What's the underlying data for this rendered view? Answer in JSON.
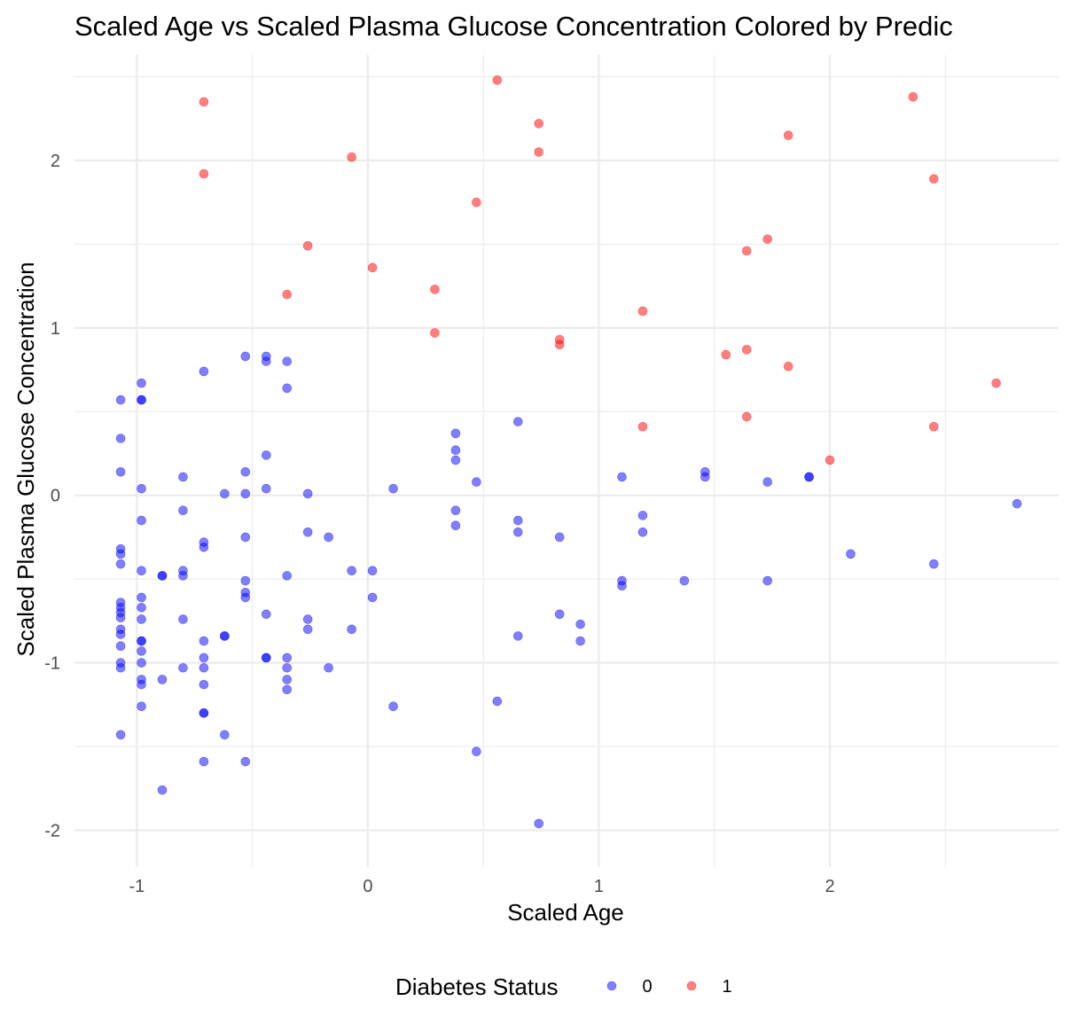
{
  "chart_data": {
    "type": "scatter",
    "title": "Scaled Age vs Scaled Plasma Glucose Concentration Colored by Predic",
    "xlabel": "Scaled Age",
    "ylabel": "Scaled Plasma Glucose Concentration",
    "xlim": [
      -1.27,
      2.99
    ],
    "ylim": [
      -2.22,
      2.63
    ],
    "x_ticks": [
      -1,
      0,
      1,
      2
    ],
    "y_ticks": [
      -2,
      -1,
      0,
      1,
      2
    ],
    "x_tick_labels": [
      "-1",
      "0",
      "1",
      "2"
    ],
    "y_tick_labels": [
      "-2",
      "-1",
      "0",
      "1",
      "2"
    ],
    "grid": true,
    "legend_position": "bottom",
    "legend_title": "Diabetes Status",
    "series": [
      {
        "name": "0",
        "color": "#0000ff",
        "points": [
          [
            -1.07,
            0.57
          ],
          [
            -1.07,
            0.34
          ],
          [
            -1.07,
            0.14
          ],
          [
            -1.07,
            -0.32
          ],
          [
            -1.07,
            -0.35
          ],
          [
            -1.07,
            -0.41
          ],
          [
            -1.07,
            -0.64
          ],
          [
            -1.07,
            -0.67
          ],
          [
            -1.07,
            -0.7
          ],
          [
            -1.07,
            -0.73
          ],
          [
            -1.07,
            -0.8
          ],
          [
            -1.07,
            -0.83
          ],
          [
            -1.07,
            -0.9
          ],
          [
            -1.07,
            -1.0
          ],
          [
            -1.07,
            -1.03
          ],
          [
            -1.07,
            -1.43
          ],
          [
            -0.98,
            0.67
          ],
          [
            -0.98,
            0.57
          ],
          [
            -0.98,
            0.57
          ],
          [
            -0.98,
            0.04
          ],
          [
            -0.98,
            -0.15
          ],
          [
            -0.98,
            -0.45
          ],
          [
            -0.98,
            -0.61
          ],
          [
            -0.98,
            -0.67
          ],
          [
            -0.98,
            -0.74
          ],
          [
            -0.98,
            -0.87
          ],
          [
            -0.98,
            -0.87
          ],
          [
            -0.98,
            -0.93
          ],
          [
            -0.98,
            -1.0
          ],
          [
            -0.98,
            -1.1
          ],
          [
            -0.98,
            -1.13
          ],
          [
            -0.98,
            -1.26
          ],
          [
            -0.89,
            -0.48
          ],
          [
            -0.89,
            -0.48
          ],
          [
            -0.89,
            -1.1
          ],
          [
            -0.89,
            -1.76
          ],
          [
            -0.8,
            0.11
          ],
          [
            -0.8,
            -0.09
          ],
          [
            -0.8,
            -0.45
          ],
          [
            -0.8,
            -0.48
          ],
          [
            -0.8,
            -0.74
          ],
          [
            -0.8,
            -1.03
          ],
          [
            -0.71,
            0.74
          ],
          [
            -0.71,
            -0.28
          ],
          [
            -0.71,
            -0.31
          ],
          [
            -0.71,
            -0.87
          ],
          [
            -0.71,
            -0.97
          ],
          [
            -0.71,
            -1.03
          ],
          [
            -0.71,
            -1.13
          ],
          [
            -0.71,
            -1.3
          ],
          [
            -0.71,
            -1.3
          ],
          [
            -0.71,
            -1.59
          ],
          [
            -0.62,
            0.01
          ],
          [
            -0.62,
            -0.84
          ],
          [
            -0.62,
            -0.84
          ],
          [
            -0.62,
            -1.43
          ],
          [
            -0.53,
            0.83
          ],
          [
            -0.53,
            0.14
          ],
          [
            -0.53,
            0.01
          ],
          [
            -0.53,
            -0.25
          ],
          [
            -0.53,
            -0.51
          ],
          [
            -0.53,
            -0.58
          ],
          [
            -0.53,
            -0.61
          ],
          [
            -0.53,
            -1.59
          ],
          [
            -0.44,
            0.83
          ],
          [
            -0.44,
            0.8
          ],
          [
            -0.44,
            0.24
          ],
          [
            -0.44,
            0.04
          ],
          [
            -0.44,
            -0.71
          ],
          [
            -0.44,
            -0.97
          ],
          [
            -0.44,
            -0.97
          ],
          [
            -0.35,
            0.8
          ],
          [
            -0.35,
            0.64
          ],
          [
            -0.35,
            -0.48
          ],
          [
            -0.35,
            -0.97
          ],
          [
            -0.35,
            -1.03
          ],
          [
            -0.35,
            -1.1
          ],
          [
            -0.35,
            -1.16
          ],
          [
            -0.26,
            0.01
          ],
          [
            -0.26,
            -0.22
          ],
          [
            -0.26,
            -0.74
          ],
          [
            -0.26,
            -0.8
          ],
          [
            -0.17,
            -0.25
          ],
          [
            -0.17,
            -1.03
          ],
          [
            -0.07,
            -0.45
          ],
          [
            -0.07,
            -0.8
          ],
          [
            0.02,
            -0.45
          ],
          [
            0.02,
            -0.61
          ],
          [
            0.11,
            0.04
          ],
          [
            0.11,
            -1.26
          ],
          [
            0.38,
            0.37
          ],
          [
            0.38,
            0.27
          ],
          [
            0.38,
            0.21
          ],
          [
            0.38,
            -0.09
          ],
          [
            0.38,
            -0.18
          ],
          [
            0.47,
            0.08
          ],
          [
            0.47,
            -1.53
          ],
          [
            0.56,
            -1.23
          ],
          [
            0.65,
            0.44
          ],
          [
            0.65,
            -0.15
          ],
          [
            0.65,
            -0.22
          ],
          [
            0.65,
            -0.84
          ],
          [
            0.74,
            -1.96
          ],
          [
            0.83,
            -0.25
          ],
          [
            0.83,
            -0.71
          ],
          [
            0.92,
            -0.77
          ],
          [
            0.92,
            -0.87
          ],
          [
            1.1,
            0.11
          ],
          [
            1.1,
            -0.51
          ],
          [
            1.1,
            -0.54
          ],
          [
            1.19,
            -0.12
          ],
          [
            1.19,
            -0.22
          ],
          [
            1.37,
            -0.51
          ],
          [
            1.46,
            0.14
          ],
          [
            1.46,
            0.11
          ],
          [
            1.73,
            0.08
          ],
          [
            1.73,
            -0.51
          ],
          [
            1.91,
            0.11
          ],
          [
            1.91,
            0.11
          ],
          [
            2.09,
            -0.35
          ],
          [
            2.45,
            -0.41
          ],
          [
            2.81,
            -0.05
          ]
        ]
      },
      {
        "name": "1",
        "color": "#ff0000",
        "points": [
          [
            -0.71,
            2.35
          ],
          [
            -0.71,
            1.92
          ],
          [
            -0.35,
            1.2
          ],
          [
            -0.26,
            1.49
          ],
          [
            -0.07,
            2.02
          ],
          [
            0.02,
            1.36
          ],
          [
            0.29,
            1.23
          ],
          [
            0.29,
            0.97
          ],
          [
            0.47,
            1.75
          ],
          [
            0.56,
            2.48
          ],
          [
            0.74,
            2.22
          ],
          [
            0.74,
            2.05
          ],
          [
            0.83,
            0.93
          ],
          [
            0.83,
            0.9
          ],
          [
            1.19,
            1.1
          ],
          [
            1.19,
            0.41
          ],
          [
            1.55,
            0.84
          ],
          [
            1.64,
            1.46
          ],
          [
            1.64,
            0.87
          ],
          [
            1.64,
            0.47
          ],
          [
            1.73,
            1.53
          ],
          [
            1.82,
            2.15
          ],
          [
            1.82,
            0.77
          ],
          [
            2.0,
            0.21
          ],
          [
            2.36,
            2.38
          ],
          [
            2.45,
            1.89
          ],
          [
            2.45,
            0.41
          ],
          [
            2.72,
            0.67
          ]
        ]
      }
    ]
  }
}
